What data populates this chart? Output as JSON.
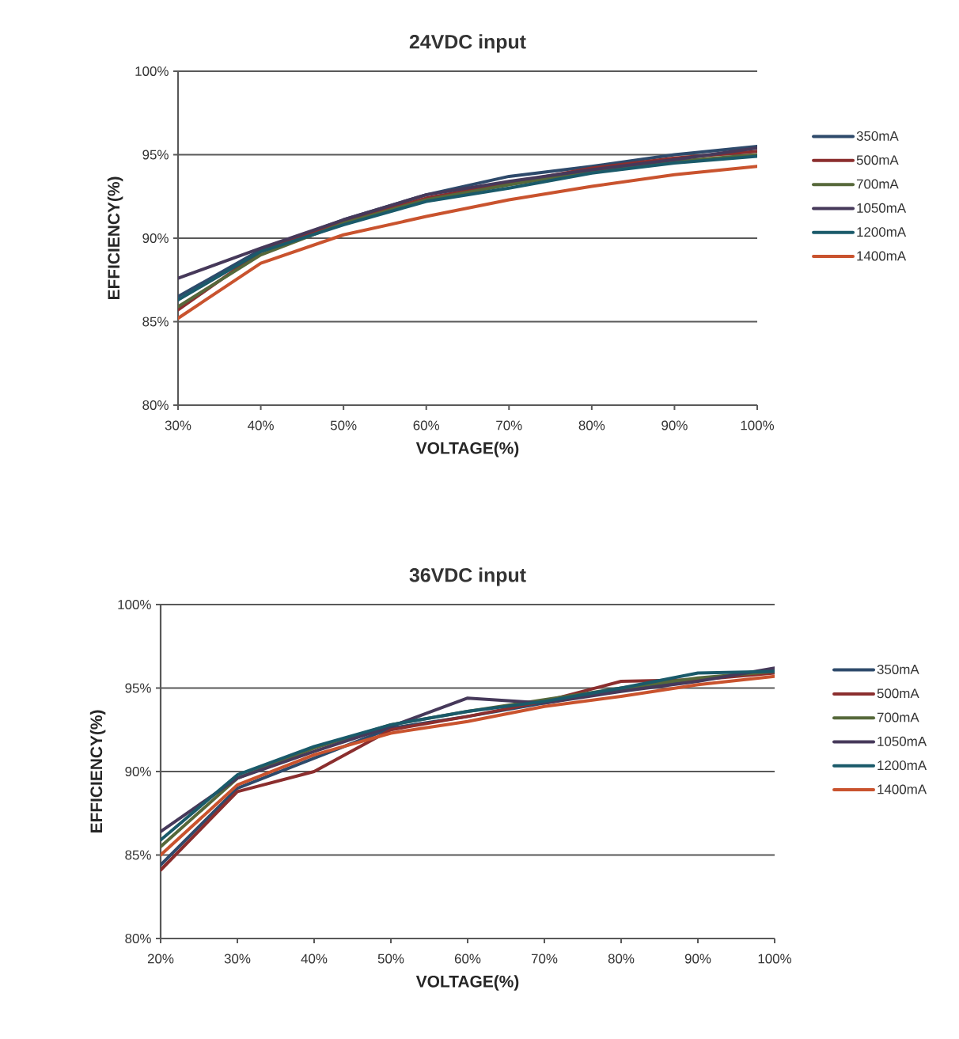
{
  "chart_data": [
    {
      "type": "line",
      "title": "24VDC input",
      "xlabel": "VOLTAGE(%)",
      "ylabel": "EFFICIENCY(%)",
      "x": [
        30,
        40,
        50,
        60,
        70,
        80,
        90,
        100
      ],
      "series": [
        {
          "name": "350mA",
          "color": "#2e4a6b",
          "values": [
            86.5,
            89.3,
            91.1,
            92.6,
            93.7,
            94.3,
            95.0,
            95.5
          ]
        },
        {
          "name": "500mA",
          "color": "#8b2e2e",
          "values": [
            85.7,
            89.2,
            91.0,
            92.4,
            93.3,
            94.2,
            94.8,
            95.2
          ]
        },
        {
          "name": "700mA",
          "color": "#56683a",
          "values": [
            85.9,
            89.0,
            90.9,
            92.3,
            93.2,
            94.0,
            94.6,
            95.0
          ]
        },
        {
          "name": "1050mA",
          "color": "#46395a",
          "values": [
            87.6,
            89.4,
            91.1,
            92.6,
            93.4,
            94.1,
            94.7,
            95.4
          ]
        },
        {
          "name": "1200mA",
          "color": "#1a5a6a",
          "values": [
            86.3,
            89.2,
            90.8,
            92.2,
            93.0,
            93.9,
            94.5,
            94.9
          ]
        },
        {
          "name": "1400mA",
          "color": "#c9532e",
          "values": [
            85.2,
            88.5,
            90.2,
            91.3,
            92.3,
            93.1,
            93.8,
            94.3
          ]
        }
      ],
      "xlim": [
        30,
        100
      ],
      "ylim": [
        80,
        100
      ],
      "xticks": [
        {
          "value": 30,
          "label": "30%"
        },
        {
          "value": 40,
          "label": "40%"
        },
        {
          "value": 50,
          "label": "50%"
        },
        {
          "value": 60,
          "label": "60%"
        },
        {
          "value": 70,
          "label": "70%"
        },
        {
          "value": 80,
          "label": "80%"
        },
        {
          "value": 90,
          "label": "90%"
        },
        {
          "value": 100,
          "label": "100%"
        }
      ],
      "yticks": [
        {
          "value": 80,
          "label": "80%"
        },
        {
          "value": 85,
          "label": "85%"
        },
        {
          "value": 90,
          "label": "90%"
        },
        {
          "value": 95,
          "label": "95%"
        },
        {
          "value": 100,
          "label": "100%"
        }
      ],
      "grid": "y",
      "legend": "right",
      "marker": "none",
      "line_style": "solid"
    },
    {
      "type": "line",
      "title": "36VDC input",
      "xlabel": "VOLTAGE(%)",
      "ylabel": "EFFICIENCY(%)",
      "x": [
        20,
        30,
        40,
        50,
        60,
        70,
        80,
        90,
        100
      ],
      "series": [
        {
          "name": "350mA",
          "color": "#2e4a6b",
          "values": [
            84.4,
            89.0,
            90.8,
            92.6,
            93.3,
            94.1,
            94.9,
            95.5,
            96.1
          ]
        },
        {
          "name": "500mA",
          "color": "#8b2e2e",
          "values": [
            84.1,
            88.8,
            90.0,
            92.5,
            93.3,
            94.2,
            95.4,
            95.5,
            95.9
          ]
        },
        {
          "name": "700mA",
          "color": "#56683a",
          "values": [
            85.5,
            89.6,
            91.4,
            92.8,
            93.6,
            94.3,
            95.0,
            95.6,
            96.0
          ]
        },
        {
          "name": "1050mA",
          "color": "#46395a",
          "values": [
            86.4,
            89.6,
            91.2,
            92.7,
            94.4,
            94.1,
            94.8,
            95.4,
            96.2
          ]
        },
        {
          "name": "1200mA",
          "color": "#1a5a6a",
          "values": [
            85.9,
            89.8,
            91.5,
            92.8,
            93.6,
            94.2,
            95.0,
            95.9,
            96.0
          ]
        },
        {
          "name": "1400mA",
          "color": "#c9532e",
          "values": [
            85.0,
            89.2,
            91.0,
            92.3,
            93.0,
            93.9,
            94.5,
            95.2,
            95.7
          ]
        }
      ],
      "xlim": [
        20,
        100
      ],
      "ylim": [
        80,
        100
      ],
      "xticks": [
        {
          "value": 20,
          "label": "20%"
        },
        {
          "value": 30,
          "label": "30%"
        },
        {
          "value": 40,
          "label": "40%"
        },
        {
          "value": 50,
          "label": "50%"
        },
        {
          "value": 60,
          "label": "60%"
        },
        {
          "value": 70,
          "label": "70%"
        },
        {
          "value": 80,
          "label": "80%"
        },
        {
          "value": 90,
          "label": "90%"
        },
        {
          "value": 100,
          "label": "100%"
        }
      ],
      "yticks": [
        {
          "value": 80,
          "label": "80%"
        },
        {
          "value": 85,
          "label": "85%"
        },
        {
          "value": 90,
          "label": "90%"
        },
        {
          "value": 95,
          "label": "95%"
        },
        {
          "value": 100,
          "label": "100%"
        }
      ],
      "grid": "y",
      "legend": "right",
      "marker": "none",
      "line_style": "solid"
    }
  ]
}
